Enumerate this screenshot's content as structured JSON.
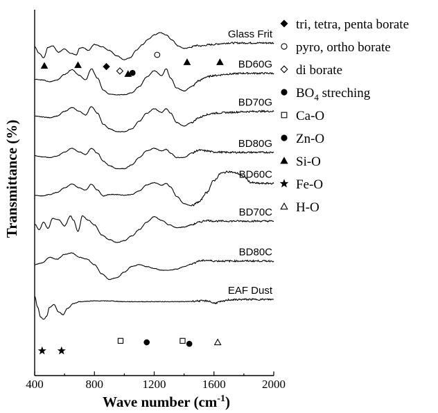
{
  "chart_data": {
    "type": "line",
    "title": "",
    "xlabel": "Wave number (cm",
    "xlabel_sup": "-1",
    "xlabel_close": ")",
    "ylabel": "Transmittance (%)",
    "xlim": [
      400,
      2000
    ],
    "xticks": [
      400,
      800,
      1200,
      1600,
      2000
    ],
    "x_labels": [
      "400",
      "800",
      "1200",
      "1600",
      "2000"
    ],
    "ylim": [
      0,
      9
    ],
    "series": [
      {
        "name": "Glass Frit",
        "offset": 8.0,
        "x": [
          400,
          430,
          460,
          490,
          520,
          560,
          600,
          640,
          680,
          700,
          720,
          760,
          800,
          850,
          900,
          950,
          1000,
          1040,
          1080,
          1120,
          1160,
          1200,
          1240,
          1280,
          1320,
          1360,
          1400,
          1440,
          1480,
          1520,
          1560,
          1600,
          1640,
          1700,
          1800,
          1900,
          2000
        ],
        "y": [
          0.3,
          0.12,
          0.0,
          0.28,
          0.32,
          0.15,
          0.24,
          0.12,
          0.08,
          0.25,
          0.28,
          0.2,
          0.36,
          0.3,
          0.2,
          0.05,
          -0.05,
          0.0,
          0.2,
          0.35,
          0.5,
          0.62,
          0.68,
          0.62,
          0.48,
          0.32,
          0.25,
          0.28,
          0.33,
          0.32,
          0.35,
          0.36,
          0.38,
          0.4,
          0.4,
          0.4,
          0.4
        ]
      },
      {
        "name": "BD60G",
        "offset": 7.0,
        "x": [
          400,
          450,
          500,
          550,
          600,
          650,
          700,
          740,
          780,
          820,
          860,
          900,
          950,
          1000,
          1050,
          1100,
          1150,
          1200,
          1250,
          1280,
          1310,
          1350,
          1400,
          1450,
          1500,
          1550,
          1600,
          1700,
          1800,
          1900,
          2000
        ],
        "y": [
          0.42,
          0.4,
          0.35,
          0.4,
          0.55,
          0.68,
          0.52,
          0.4,
          0.7,
          0.45,
          0.12,
          0.02,
          0.0,
          0.0,
          0.05,
          0.22,
          0.48,
          0.65,
          0.52,
          0.7,
          0.45,
          0.18,
          0.1,
          0.22,
          0.38,
          0.48,
          0.52,
          0.56,
          0.58,
          0.58,
          0.58
        ]
      },
      {
        "name": "BD70G",
        "offset": 6.0,
        "x": [
          400,
          450,
          500,
          550,
          600,
          650,
          700,
          740,
          780,
          820,
          860,
          900,
          950,
          1000,
          1050,
          1100,
          1150,
          1200,
          1250,
          1280,
          1310,
          1350,
          1400,
          1450,
          1500,
          1550,
          1600,
          1700,
          1800,
          1900,
          2000
        ],
        "y": [
          0.42,
          0.4,
          0.38,
          0.42,
          0.55,
          0.65,
          0.55,
          0.45,
          0.68,
          0.5,
          0.2,
          0.08,
          0.0,
          0.0,
          0.08,
          0.28,
          0.5,
          0.62,
          0.52,
          0.62,
          0.5,
          0.25,
          0.15,
          0.25,
          0.38,
          0.46,
          0.5,
          0.52,
          0.54,
          0.55,
          0.55
        ]
      },
      {
        "name": "BD80G",
        "offset": 5.0,
        "x": [
          400,
          450,
          500,
          550,
          600,
          650,
          700,
          740,
          780,
          820,
          860,
          900,
          950,
          1000,
          1050,
          1100,
          1150,
          1200,
          1250,
          1280,
          1310,
          1350,
          1400,
          1450,
          1500,
          1550,
          1600,
          1700,
          1800,
          1900,
          2000
        ],
        "y": [
          0.35,
          0.32,
          0.3,
          0.34,
          0.45,
          0.55,
          0.45,
          0.38,
          0.55,
          0.42,
          0.2,
          0.08,
          0.0,
          0.0,
          0.1,
          0.3,
          0.48,
          0.55,
          0.48,
          0.52,
          0.42,
          0.3,
          0.3,
          0.42,
          0.5,
          0.48,
          0.45,
          0.44,
          0.44,
          0.44,
          0.44
        ]
      },
      {
        "name": "BD60C",
        "offset": 4.0,
        "x": [
          400,
          450,
          500,
          550,
          600,
          650,
          700,
          740,
          780,
          820,
          860,
          900,
          950,
          1000,
          1050,
          1100,
          1150,
          1200,
          1250,
          1280,
          1310,
          1350,
          1400,
          1450,
          1500,
          1550,
          1600,
          1650,
          1700,
          1750,
          1800,
          1850,
          1900,
          2000
        ],
        "y": [
          0.28,
          0.26,
          0.3,
          0.36,
          0.48,
          0.58,
          0.48,
          0.42,
          0.58,
          0.42,
          0.26,
          0.3,
          0.3,
          0.28,
          0.3,
          0.4,
          0.56,
          0.62,
          0.55,
          0.6,
          0.5,
          0.25,
          0.05,
          0.0,
          0.1,
          0.35,
          0.68,
          0.88,
          0.92,
          0.88,
          0.78,
          0.62,
          0.6,
          0.6
        ]
      },
      {
        "name": "BD70C",
        "offset": 3.0,
        "x": [
          400,
          430,
          460,
          490,
          520,
          560,
          600,
          640,
          660,
          690,
          720,
          760,
          800,
          850,
          900,
          950,
          1000,
          1050,
          1100,
          1150,
          1200,
          1250,
          1300,
          1350,
          1400,
          1450,
          1500,
          1550,
          1600,
          1700,
          1800,
          1900,
          2000
        ],
        "y": [
          0.5,
          0.35,
          0.55,
          0.38,
          0.65,
          0.62,
          0.45,
          0.72,
          0.6,
          0.3,
          0.72,
          0.6,
          0.48,
          0.2,
          0.08,
          0.0,
          0.05,
          0.18,
          0.35,
          0.55,
          0.7,
          0.6,
          0.48,
          0.4,
          0.42,
          0.48,
          0.55,
          0.6,
          0.58,
          0.58,
          0.58,
          0.58,
          0.58
        ]
      },
      {
        "name": "BD80C",
        "offset": 2.0,
        "x": [
          400,
          450,
          500,
          550,
          600,
          650,
          700,
          750,
          800,
          850,
          900,
          950,
          1000,
          1050,
          1100,
          1150,
          1200,
          1250,
          1300,
          1350,
          1400,
          1450,
          1500,
          1550,
          1600,
          1700,
          1800,
          1900,
          2000
        ],
        "y": [
          0.4,
          0.45,
          0.6,
          0.55,
          0.68,
          0.72,
          0.6,
          0.55,
          0.4,
          0.15,
          0.0,
          0.05,
          0.2,
          0.35,
          0.4,
          0.35,
          0.3,
          0.25,
          0.25,
          0.28,
          0.35,
          0.42,
          0.5,
          0.52,
          0.5,
          0.5,
          0.5,
          0.5,
          0.5
        ]
      },
      {
        "name": "EAF Dust",
        "offset": 0.7,
        "x": [
          400,
          420,
          440,
          460,
          480,
          500,
          530,
          560,
          590,
          620,
          660,
          700,
          800,
          900,
          1000,
          1100,
          1200,
          1300,
          1400,
          1500,
          1560,
          1600,
          1650,
          1700,
          1800,
          1900,
          2000
        ],
        "y": [
          0.85,
          0.55,
          0.28,
          0.22,
          0.3,
          0.55,
          0.62,
          0.42,
          0.35,
          0.52,
          0.65,
          0.7,
          0.72,
          0.72,
          0.7,
          0.7,
          0.7,
          0.7,
          0.7,
          0.72,
          0.72,
          0.66,
          0.7,
          0.75,
          0.76,
          0.76,
          0.76
        ]
      }
    ],
    "markers": [
      {
        "type": "Si-O",
        "x": 465,
        "y": 7.78
      },
      {
        "type": "Si-O",
        "x": 690,
        "y": 7.8
      },
      {
        "type": "Si-O",
        "x": 1025,
        "y": 7.56
      },
      {
        "type": "Si-O",
        "x": 1420,
        "y": 7.88
      },
      {
        "type": "Si-O",
        "x": 1640,
        "y": 7.88
      },
      {
        "type": "tri, tetra, penta borate",
        "x": 880,
        "y": 7.76
      },
      {
        "type": "di borate",
        "x": 970,
        "y": 7.64
      },
      {
        "type": "BO4 streching",
        "x": 1055,
        "y": 7.59
      },
      {
        "type": "pyro, ortho borate",
        "x": 1220,
        "y": 8.08
      },
      {
        "type": "Fe-O",
        "x": 450,
        "y": 0.07
      },
      {
        "type": "Fe-O",
        "x": 580,
        "y": 0.07
      },
      {
        "type": "Ca-O",
        "x": 975,
        "y": 0.34
      },
      {
        "type": "Ca-O",
        "x": 1390,
        "y": 0.34
      },
      {
        "type": "Zn-O",
        "x": 1150,
        "y": 0.3
      },
      {
        "type": "Zn-O",
        "x": 1435,
        "y": 0.26
      },
      {
        "type": "H-O",
        "x": 1625,
        "y": 0.3
      }
    ],
    "legend": {
      "placement": "right",
      "entries": [
        {
          "symbol": "diamond-filled",
          "label": "tri, tetra, penta borate"
        },
        {
          "symbol": "circle-open",
          "label": "pyro, ortho borate"
        },
        {
          "symbol": "diamond-open",
          "label": "di borate"
        },
        {
          "symbol": "circle-filled",
          "label": "BO",
          "sub": "4",
          "label_rest": " streching"
        },
        {
          "symbol": "square-open",
          "label": "Ca-O"
        },
        {
          "symbol": "circle-filled",
          "label": "Zn-O"
        },
        {
          "symbol": "triangle-filled",
          "label": "Si-O"
        },
        {
          "symbol": "star-filled",
          "label": "Fe-O"
        },
        {
          "symbol": "triangle-open",
          "label": "H-O"
        }
      ]
    },
    "grid": false
  }
}
